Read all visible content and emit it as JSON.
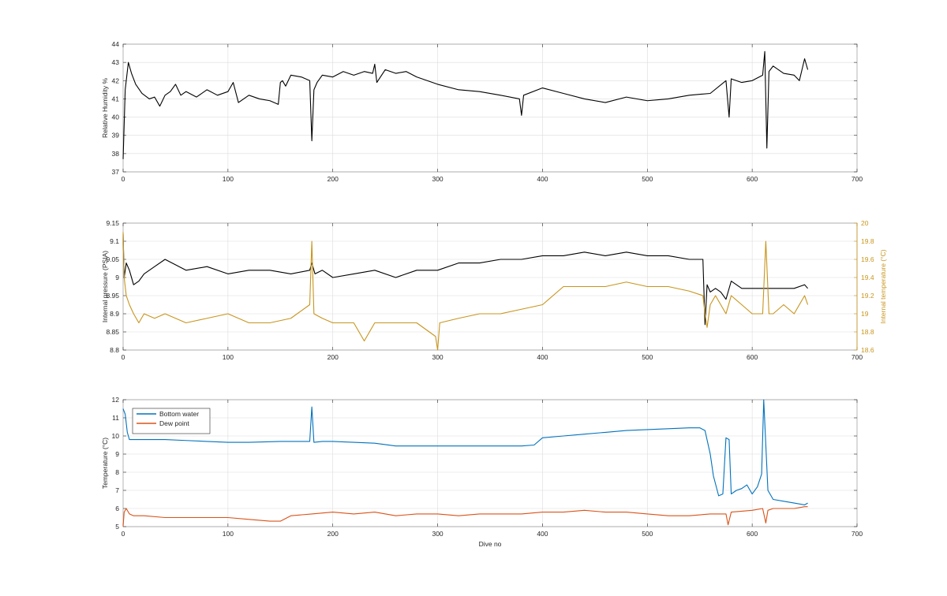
{
  "chart_data": [
    {
      "type": "line",
      "title": "",
      "xlabel": "",
      "ylabel": "Relative Humidity %",
      "xlim": [
        0,
        700
      ],
      "ylim": [
        37,
        44
      ],
      "xticks": [
        0,
        100,
        200,
        300,
        400,
        500,
        600,
        700
      ],
      "yticks": [
        37,
        38,
        39,
        40,
        41,
        42,
        43,
        44
      ],
      "grid": true,
      "series": [
        {
          "color": "#000000",
          "x": [
            0,
            2,
            5,
            8,
            12,
            18,
            25,
            30,
            35,
            40,
            45,
            50,
            55,
            60,
            70,
            80,
            90,
            100,
            105,
            110,
            115,
            120,
            130,
            140,
            148,
            150,
            152,
            155,
            160,
            170,
            178,
            180,
            182,
            185,
            190,
            200,
            210,
            220,
            230,
            238,
            240,
            242,
            250,
            260,
            270,
            280,
            290,
            300,
            320,
            340,
            360,
            378,
            380,
            382,
            400,
            420,
            440,
            460,
            480,
            500,
            520,
            540,
            560,
            575,
            578,
            580,
            590,
            600,
            610,
            612,
            614,
            616,
            620,
            630,
            640,
            645,
            650,
            653
          ],
          "y": [
            37.7,
            41.5,
            43.0,
            42.4,
            41.8,
            41.3,
            41.0,
            41.1,
            40.6,
            41.2,
            41.4,
            41.8,
            41.2,
            41.4,
            41.1,
            41.5,
            41.2,
            41.4,
            41.9,
            40.8,
            41.0,
            41.2,
            41.0,
            40.9,
            40.7,
            41.9,
            42.0,
            41.7,
            42.3,
            42.2,
            42.0,
            38.7,
            41.5,
            41.9,
            42.3,
            42.2,
            42.5,
            42.3,
            42.5,
            42.4,
            42.9,
            41.9,
            42.6,
            42.4,
            42.5,
            42.2,
            42.0,
            41.8,
            41.5,
            41.4,
            41.2,
            41.0,
            40.1,
            41.2,
            41.6,
            41.3,
            41.0,
            40.8,
            41.1,
            40.9,
            41.0,
            41.2,
            41.3,
            42.0,
            40.0,
            42.1,
            41.9,
            42.0,
            42.3,
            43.6,
            38.3,
            42.5,
            42.8,
            42.4,
            42.3,
            42.0,
            43.2,
            42.6
          ]
        }
      ]
    },
    {
      "type": "line",
      "title": "",
      "xlabel": "",
      "ylabel": "Internal pressure (PSIA)",
      "y2label": "Internal temperature (°C)",
      "xlim": [
        0,
        700
      ],
      "ylim": [
        8.8,
        9.15
      ],
      "y2lim": [
        18.6,
        20
      ],
      "xticks": [
        0,
        100,
        200,
        300,
        400,
        500,
        600,
        700
      ],
      "yticks": [
        8.8,
        8.85,
        8.9,
        8.95,
        9,
        9.05,
        9.1,
        9.15
      ],
      "yticklabels": [
        "8.8",
        "8.85",
        "8.9",
        "8.95",
        "9",
        "9.05",
        "9.1",
        "9.15"
      ],
      "y2ticks": [
        18.6,
        18.8,
        19,
        19.2,
        19.4,
        19.6,
        19.8,
        20
      ],
      "y2ticklabels": [
        "18.6",
        "18.8",
        "19",
        "19.2",
        "19.4",
        "19.6",
        "19.8",
        "20"
      ],
      "grid": true,
      "series": [
        {
          "axis": "left",
          "color": "#000000",
          "x": [
            0,
            1,
            3,
            6,
            10,
            15,
            20,
            30,
            40,
            60,
            80,
            100,
            120,
            140,
            160,
            178,
            180,
            183,
            190,
            200,
            220,
            240,
            260,
            280,
            300,
            320,
            340,
            360,
            380,
            400,
            420,
            440,
            460,
            480,
            500,
            520,
            540,
            553,
            555,
            557,
            560,
            565,
            570,
            575,
            580,
            590,
            600,
            610,
            620,
            630,
            640,
            650,
            653
          ],
          "y": [
            9.12,
            9.0,
            9.04,
            9.02,
            8.98,
            8.99,
            9.01,
            9.03,
            9.05,
            9.02,
            9.03,
            9.01,
            9.02,
            9.02,
            9.01,
            9.02,
            9.04,
            9.01,
            9.02,
            9.0,
            9.01,
            9.02,
            9.0,
            9.02,
            9.02,
            9.04,
            9.04,
            9.05,
            9.05,
            9.06,
            9.06,
            9.07,
            9.06,
            9.07,
            9.06,
            9.06,
            9.05,
            9.05,
            8.87,
            8.98,
            8.96,
            8.97,
            8.96,
            8.94,
            8.99,
            8.97,
            8.97,
            8.97,
            8.97,
            8.97,
            8.97,
            8.98,
            8.97
          ]
        },
        {
          "axis": "right",
          "color": "#C8951D",
          "x": [
            0,
            1,
            3,
            6,
            10,
            15,
            20,
            30,
            40,
            60,
            80,
            100,
            120,
            140,
            160,
            178,
            180,
            182,
            190,
            200,
            220,
            230,
            240,
            260,
            280,
            298,
            300,
            302,
            320,
            340,
            360,
            380,
            400,
            420,
            440,
            460,
            480,
            500,
            520,
            540,
            553,
            555,
            557,
            560,
            565,
            570,
            575,
            580,
            590,
            600,
            610,
            613,
            616,
            620,
            630,
            640,
            650,
            653
          ],
          "y": [
            19.9,
            19.4,
            19.2,
            19.1,
            19.0,
            18.9,
            19.0,
            18.95,
            19.0,
            18.9,
            18.95,
            19.0,
            18.9,
            18.9,
            18.95,
            19.1,
            19.8,
            19.0,
            18.95,
            18.9,
            18.9,
            18.7,
            18.9,
            18.9,
            18.9,
            18.75,
            18.6,
            18.9,
            18.95,
            19.0,
            19.0,
            19.05,
            19.1,
            19.3,
            19.3,
            19.3,
            19.35,
            19.3,
            19.3,
            19.25,
            19.2,
            19.0,
            18.85,
            19.1,
            19.2,
            19.1,
            19.0,
            19.2,
            19.1,
            19.0,
            19.0,
            19.8,
            19.0,
            19.0,
            19.1,
            19.0,
            19.2,
            19.1
          ]
        }
      ]
    },
    {
      "type": "line",
      "title": "",
      "xlabel": "Dive no",
      "ylabel": "Temperature (°C)",
      "xlim": [
        0,
        700
      ],
      "ylim": [
        5,
        12
      ],
      "xticks": [
        0,
        100,
        200,
        300,
        400,
        500,
        600,
        700
      ],
      "yticks": [
        5,
        6,
        7,
        8,
        9,
        10,
        11,
        12
      ],
      "grid": true,
      "legend": "top-left",
      "series": [
        {
          "name": "Bottom water",
          "color": "#0072BD",
          "x": [
            0,
            2,
            4,
            6,
            10,
            20,
            40,
            60,
            80,
            100,
            120,
            150,
            170,
            178,
            180,
            182,
            190,
            200,
            220,
            240,
            260,
            280,
            300,
            340,
            380,
            392,
            400,
            420,
            440,
            460,
            480,
            500,
            520,
            540,
            550,
            555,
            560,
            563,
            568,
            572,
            575,
            578,
            580,
            585,
            590,
            595,
            600,
            605,
            609,
            611,
            613,
            615,
            618,
            620,
            630,
            640,
            650,
            653
          ],
          "y": [
            11.5,
            11.2,
            10.2,
            9.8,
            9.8,
            9.8,
            9.8,
            9.75,
            9.7,
            9.65,
            9.65,
            9.7,
            9.7,
            9.7,
            11.6,
            9.65,
            9.7,
            9.7,
            9.65,
            9.6,
            9.45,
            9.45,
            9.45,
            9.45,
            9.45,
            9.5,
            9.9,
            10.0,
            10.1,
            10.2,
            10.3,
            10.35,
            10.4,
            10.45,
            10.45,
            10.3,
            9.0,
            7.8,
            6.7,
            6.8,
            9.9,
            9.8,
            6.8,
            7.0,
            7.1,
            7.3,
            6.8,
            7.2,
            7.9,
            12.0,
            9.5,
            7.0,
            6.7,
            6.5,
            6.4,
            6.3,
            6.2,
            6.3
          ]
        },
        {
          "name": "Dew point",
          "color": "#D95319",
          "x": [
            0,
            1,
            3,
            6,
            10,
            20,
            40,
            60,
            80,
            100,
            120,
            140,
            150,
            160,
            180,
            200,
            220,
            240,
            260,
            280,
            300,
            320,
            340,
            360,
            380,
            400,
            420,
            440,
            460,
            480,
            500,
            520,
            540,
            560,
            575,
            577,
            580,
            600,
            610,
            613,
            615,
            620,
            630,
            640,
            650,
            653
          ],
          "y": [
            5.0,
            5.8,
            6.0,
            5.7,
            5.6,
            5.6,
            5.5,
            5.5,
            5.5,
            5.5,
            5.4,
            5.3,
            5.3,
            5.6,
            5.7,
            5.8,
            5.7,
            5.8,
            5.6,
            5.7,
            5.7,
            5.6,
            5.7,
            5.7,
            5.7,
            5.8,
            5.8,
            5.9,
            5.8,
            5.8,
            5.7,
            5.6,
            5.6,
            5.7,
            5.7,
            5.1,
            5.8,
            5.9,
            6.0,
            5.2,
            5.9,
            6.0,
            6.0,
            6.0,
            6.1,
            6.1
          ]
        }
      ]
    }
  ]
}
